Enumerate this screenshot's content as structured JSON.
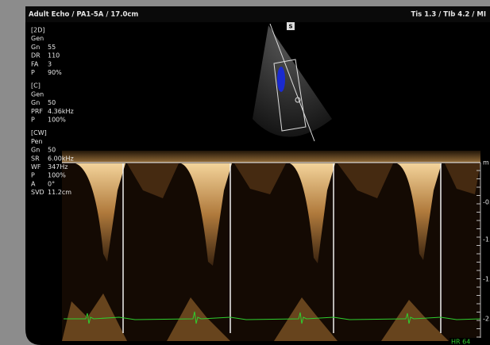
{
  "header": {
    "title": "Adult Echo / PA1-5A / 17.0cm",
    "indices": "Tis  1.3 / TIb  4.2 / MI"
  },
  "marker": "S",
  "params": [
    {
      "heading": "[2D]",
      "rows": [
        [
          "Gen"
        ],
        [
          "Gn",
          "55"
        ],
        [
          "DR",
          "110"
        ],
        [
          "FA",
          "3"
        ],
        [
          "P",
          "90%"
        ]
      ]
    },
    {
      "heading": "[C]",
      "rows": [
        [
          "Gen"
        ],
        [
          "Gn",
          "50"
        ],
        [
          "PRF",
          "4.36kHz"
        ],
        [
          "P",
          "100%"
        ]
      ]
    },
    {
      "heading": "[CW]",
      "rows": [
        [
          "Pen"
        ],
        [
          "Gn",
          "50"
        ],
        [
          "SR",
          "6.00kHz"
        ],
        [
          "WF",
          "347Hz"
        ],
        [
          "P",
          "100%"
        ],
        [
          "A",
          "0°"
        ],
        [
          "SVD",
          "11.2cm"
        ]
      ]
    }
  ],
  "scale": {
    "unit": "m",
    "labels": [
      "-0.",
      "-1.",
      "-1.",
      "-2."
    ]
  },
  "heart_rate": "HR 64"
}
